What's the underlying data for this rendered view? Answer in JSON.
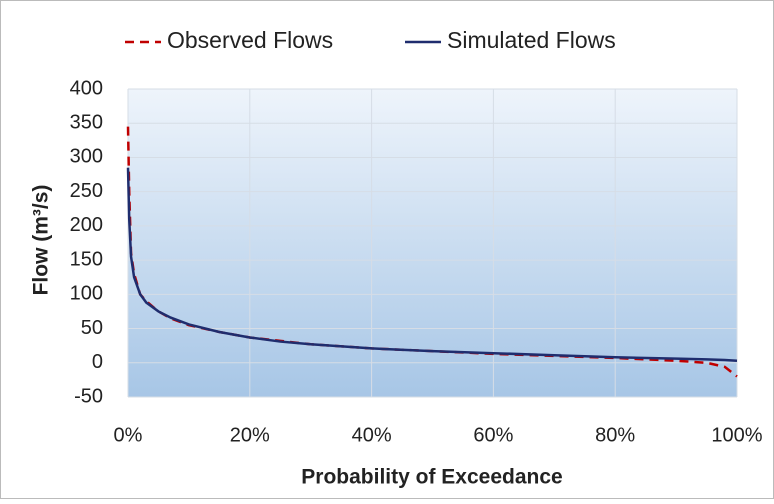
{
  "chart_data": {
    "type": "line",
    "x_label": "Probability of Exceedance",
    "y_label": "Flow (m³/s)",
    "xlim": [
      0,
      100
    ],
    "xticks": [
      {
        "value": 0,
        "label": "0%"
      },
      {
        "value": 20,
        "label": "20%"
      },
      {
        "value": 40,
        "label": "40%"
      },
      {
        "value": 60,
        "label": "60%"
      },
      {
        "value": 80,
        "label": "80%"
      },
      {
        "value": 100,
        "label": "100%"
      }
    ],
    "ylim": [
      -50,
      400
    ],
    "yticks": [
      -50,
      0,
      50,
      100,
      150,
      200,
      250,
      300,
      350,
      400
    ],
    "grid": true,
    "legend": "top",
    "x": [
      0,
      0.2,
      0.5,
      1,
      2,
      3,
      5,
      7,
      10,
      15,
      20,
      25,
      30,
      40,
      50,
      60,
      70,
      80,
      90,
      95,
      98,
      100
    ],
    "series": [
      {
        "name": "Observed Flows",
        "color": "#c00000",
        "dash": "dashed",
        "values": [
          345,
          250,
          160,
          130,
          100,
          90,
          75,
          65,
          55,
          45,
          37,
          32,
          27,
          21,
          17,
          13,
          10,
          7,
          3,
          0,
          -6,
          -20
        ]
      },
      {
        "name": "Simulated Flows",
        "color": "#1f2d6e",
        "dash": "solid",
        "values": [
          285,
          210,
          155,
          125,
          100,
          88,
          75,
          66,
          56,
          45,
          37,
          31,
          27,
          21,
          17,
          14,
          11,
          8,
          6,
          5,
          4,
          3
        ]
      }
    ]
  }
}
